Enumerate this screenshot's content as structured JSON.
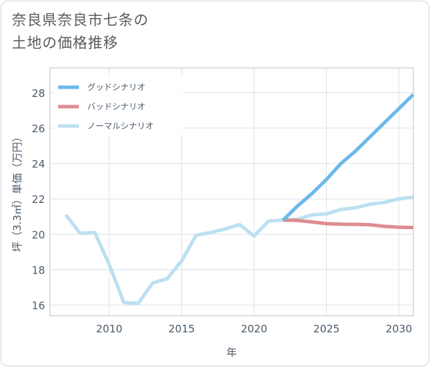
{
  "title_line1": "奈良県奈良市七条の",
  "title_line2": "土地の価格推移",
  "chart_data": {
    "type": "line",
    "title": "奈良県奈良市七条の土地の価格推移",
    "xlabel": "年",
    "ylabel": "坪（3.3㎡）単価（万円）",
    "xlim": [
      2005.9,
      2031
    ],
    "ylim": [
      15.4,
      29.4
    ],
    "x_ticks": [
      2010,
      2015,
      2020,
      2025,
      2030
    ],
    "y_ticks": [
      16,
      18,
      20,
      22,
      24,
      26,
      28
    ],
    "legend_position": "top-left",
    "series": [
      {
        "name": "グッドシナリオ",
        "color": "#6cb9ea",
        "x": [
          2022,
          2023,
          2024,
          2025,
          2026,
          2027,
          2028,
          2029,
          2030,
          2031
        ],
        "y": [
          20.8,
          21.6,
          22.3,
          23.1,
          24.0,
          24.7,
          25.5,
          26.3,
          27.1,
          27.9
        ]
      },
      {
        "name": "バッドシナリオ",
        "color": "#dd8d91",
        "x": [
          2022,
          2023,
          2024,
          2025,
          2026,
          2027,
          2028,
          2029,
          2030,
          2031
        ],
        "y": [
          20.8,
          20.78,
          20.7,
          20.6,
          20.57,
          20.56,
          20.54,
          20.45,
          20.4,
          20.38
        ]
      },
      {
        "name": "ノーマルシナリオ",
        "color": "#bde0f0",
        "x": [
          2007,
          2008,
          2009,
          2010,
          2011,
          2012,
          2013,
          2014,
          2015,
          2016,
          2017,
          2018,
          2019,
          2020,
          2021,
          2022,
          2023,
          2024,
          2025,
          2026,
          2027,
          2028,
          2029,
          2030,
          2031
        ],
        "y": [
          21.1,
          20.05,
          20.1,
          18.3,
          16.15,
          16.1,
          17.25,
          17.5,
          18.5,
          19.95,
          20.1,
          20.3,
          20.55,
          19.9,
          20.75,
          20.8,
          20.85,
          21.1,
          21.15,
          21.4,
          21.5,
          21.7,
          21.8,
          22.0,
          22.1
        ]
      }
    ]
  }
}
